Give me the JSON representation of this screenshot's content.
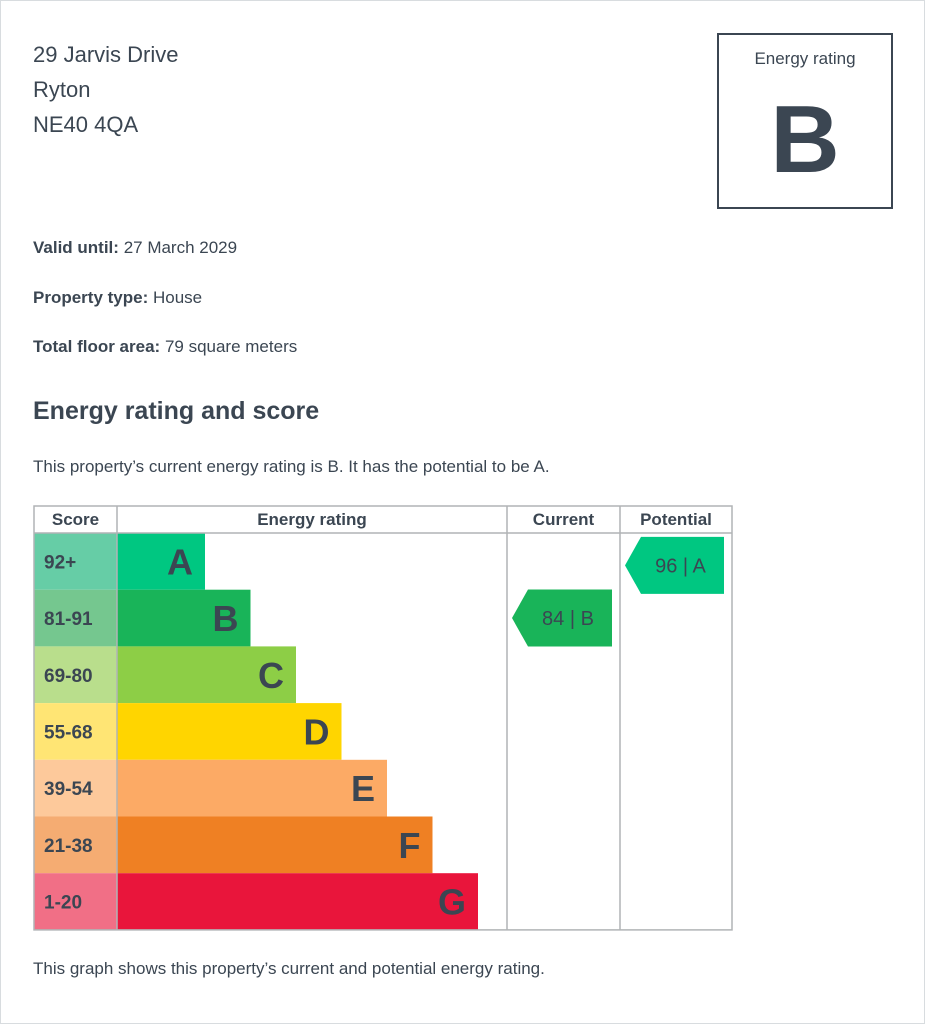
{
  "address": {
    "line1": "29 Jarvis Drive",
    "line2": "Ryton",
    "line3": "NE40 4QA"
  },
  "rating_box": {
    "label": "Energy rating",
    "letter": "B"
  },
  "facts": [
    {
      "label": "Valid until:",
      "value": "27 March 2029"
    },
    {
      "label": "Property type:",
      "value": "House"
    },
    {
      "label": "Total floor area:",
      "value": "79 square meters"
    }
  ],
  "section_title": "Energy rating and score",
  "summary": "This property’s current energy rating is B. It has the potential to be A.",
  "footer_note": "This graph shows this property’s current and potential energy rating.",
  "chart_data": {
    "type": "bar",
    "headers": {
      "score": "Score",
      "rating": "Energy rating",
      "current": "Current",
      "potential": "Potential"
    },
    "bands": [
      {
        "letter": "A",
        "score": "92+",
        "color": "#00c781",
        "score_bg": "#66cda6"
      },
      {
        "letter": "B",
        "score": "81-91",
        "color": "#19b459",
        "score_bg": "#75c78f"
      },
      {
        "letter": "C",
        "score": "69-80",
        "color": "#8dce46",
        "score_bg": "#b9de8c"
      },
      {
        "letter": "D",
        "score": "55-68",
        "color": "#ffd500",
        "score_bg": "#ffe574"
      },
      {
        "letter": "E",
        "score": "39-54",
        "color": "#fcaa65",
        "score_bg": "#fdc99b"
      },
      {
        "letter": "F",
        "score": "21-38",
        "color": "#ef8023",
        "score_bg": "#f5ac72"
      },
      {
        "letter": "G",
        "score": "1-20",
        "color": "#e9153b",
        "score_bg": "#f16f86"
      }
    ],
    "current": {
      "score": 84,
      "letter": "B",
      "label": "84 | B",
      "color": "#19b459"
    },
    "potential": {
      "score": 96,
      "letter": "A",
      "label": "96 | A",
      "color": "#00c781"
    },
    "text_color": "#3b4652"
  }
}
